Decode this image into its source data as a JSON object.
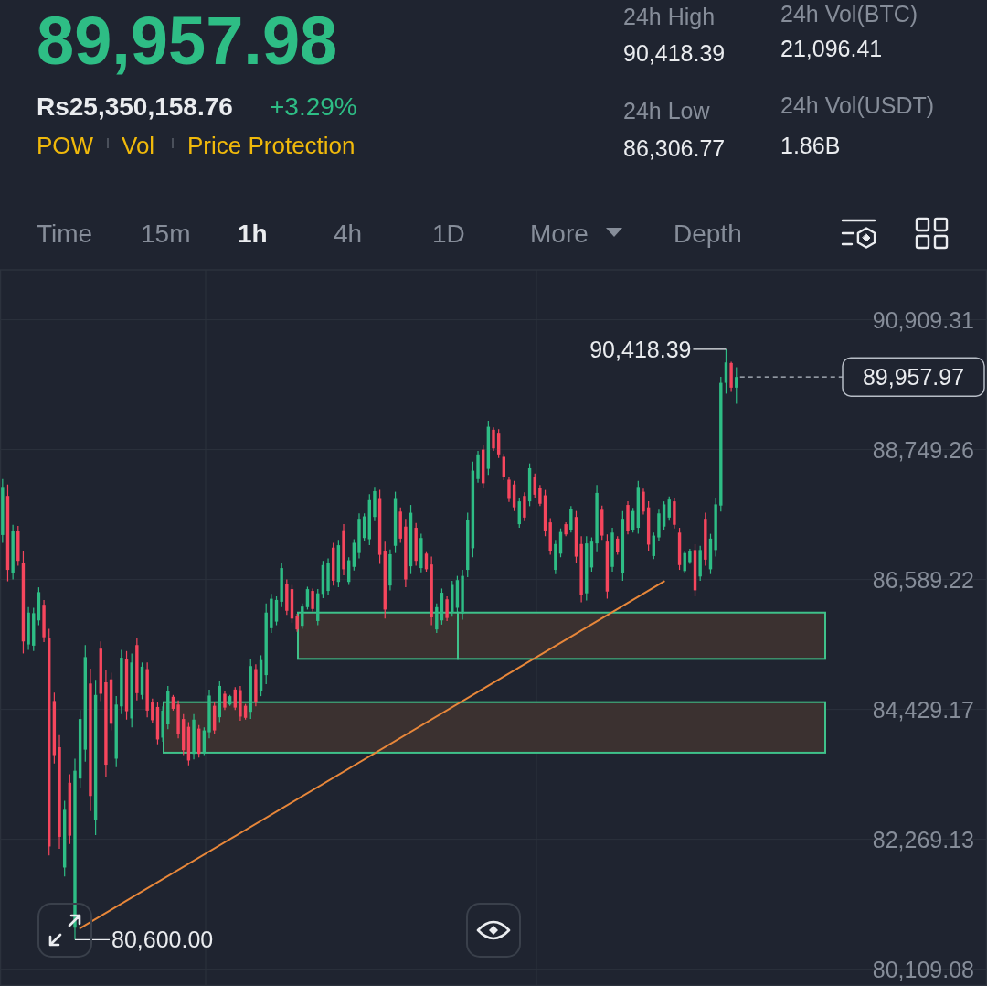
{
  "chart_data": {
    "type": "candlestick",
    "title": "89,957.98",
    "annotations": [
      "Rs25,350,158.76",
      "+3.29%",
      "POW",
      "Vol",
      "Price Protection",
      "24h High",
      "90,418.39",
      "24h Low",
      "86,306.77",
      "24h Vol(BTC)",
      "21,096.41",
      "24h Vol(USDT)",
      "1.86B",
      "Time",
      "15m",
      "1h",
      "4h",
      "1D",
      "More",
      "Depth",
      "90,418.39",
      "80,600.00"
    ],
    "categories": [
      null,
      null,
      null,
      null,
      null,
      null,
      null,
      null,
      null,
      null,
      null,
      null,
      null,
      null,
      null,
      null,
      null,
      null,
      null,
      null,
      null,
      null,
      null,
      null,
      null,
      null,
      null,
      null,
      null,
      null,
      null,
      null,
      null,
      null,
      null,
      null,
      null,
      null,
      null,
      null,
      null,
      null,
      null,
      null,
      null,
      null,
      null,
      null,
      null,
      null,
      null,
      null,
      null,
      null,
      null,
      null,
      null,
      null,
      null,
      null,
      null,
      null,
      null,
      null,
      null,
      null,
      null,
      null,
      null,
      null,
      null,
      null,
      null,
      null,
      null,
      null,
      null,
      null,
      null,
      null,
      null,
      null,
      null,
      null,
      null,
      null,
      null,
      null,
      null,
      null,
      null,
      null,
      null,
      null,
      null,
      null,
      null,
      null,
      null,
      null,
      null,
      null,
      null,
      null,
      null,
      null,
      null,
      null,
      null,
      null,
      null,
      null,
      null,
      null,
      null,
      null,
      null,
      null,
      null,
      null,
      null,
      null,
      null,
      null,
      null,
      null,
      null,
      null,
      null,
      null,
      null,
      null,
      null,
      null,
      null,
      null,
      null,
      null,
      null,
      null,
      null,
      null,
      null,
      null,
      null,
      null,
      null,
      null,
      null,
      null,
      null,
      null,
      null,
      null,
      null,
      null,
      null,
      null,
      null,
      null,
      null,
      null,
      null,
      null,
      null,
      null,
      null,
      null,
      null,
      null,
      null,
      null,
      null,
      null,
      null,
      null,
      null,
      null,
      null,
      null,
      null,
      null,
      null,
      null,
      null,
      null,
      null,
      null,
      null,
      null,
      null
    ],
    "ohlc": [
      [
        87330,
        88260,
        87200,
        88130
      ],
      [
        87980,
        88170,
        86560,
        86750
      ],
      [
        86700,
        87500,
        86590,
        87390
      ],
      [
        87400,
        87480,
        86820,
        86900
      ],
      [
        86870,
        87070,
        85360,
        85560
      ],
      [
        85510,
        86130,
        85420,
        86040
      ],
      [
        85490,
        86120,
        85400,
        86030
      ],
      [
        85910,
        86460,
        85830,
        86380
      ],
      [
        86170,
        86250,
        85550,
        85630
      ],
      [
        85620,
        85770,
        82000,
        82150
      ],
      [
        84570,
        84710,
        83530,
        83670
      ],
      [
        83800,
        84000,
        82110,
        82310
      ],
      [
        81800,
        82910,
        81650,
        82760
      ],
      [
        83210,
        83350,
        82190,
        82330
      ],
      [
        80800,
        83610,
        80600,
        83410
      ],
      [
        83280,
        84420,
        83130,
        84270
      ],
      [
        83760,
        85500,
        83560,
        85300
      ],
      [
        84860,
        85110,
        82740,
        82990
      ],
      [
        82590,
        84920,
        82340,
        84670
      ],
      [
        85440,
        85560,
        84570,
        84690
      ],
      [
        84880,
        85080,
        83310,
        83510
      ],
      [
        84930,
        85040,
        84080,
        84190
      ],
      [
        83610,
        84650,
        83470,
        84510
      ],
      [
        84480,
        85420,
        84350,
        85290
      ],
      [
        85260,
        85400,
        84260,
        84400
      ],
      [
        84280,
        85360,
        84130,
        85210
      ],
      [
        85500,
        85620,
        84580,
        84700
      ],
      [
        84670,
        85210,
        84600,
        85140
      ],
      [
        85100,
        85210,
        84300,
        84410
      ],
      [
        84560,
        84610,
        84200,
        84250
      ],
      [
        84470,
        84550,
        83850,
        83930
      ],
      [
        83960,
        84480,
        83890,
        84410
      ],
      [
        84180,
        84820,
        84100,
        84740
      ],
      [
        84640,
        84670,
        84410,
        84440
      ],
      [
        84510,
        84580,
        83950,
        84020
      ],
      [
        84270,
        84350,
        83670,
        83750
      ],
      [
        84140,
        84220,
        83500,
        83580
      ],
      [
        83690,
        84350,
        83600,
        84260
      ],
      [
        84110,
        84170,
        83630,
        83690
      ],
      [
        83720,
        84130,
        83670,
        84080
      ],
      [
        84050,
        84760,
        83950,
        84660
      ],
      [
        84490,
        84550,
        84020,
        84080
      ],
      [
        84300,
        84900,
        84220,
        84820
      ],
      [
        84690,
        84730,
        84420,
        84460
      ],
      [
        84510,
        84670,
        84490,
        84650
      ],
      [
        84760,
        84800,
        84420,
        84460
      ],
      [
        84750,
        84820,
        84240,
        84310
      ],
      [
        84490,
        84520,
        84260,
        84290
      ],
      [
        84390,
        85270,
        84270,
        85150
      ],
      [
        85100,
        85180,
        84480,
        84560
      ],
      [
        84730,
        85330,
        84650,
        85250
      ],
      [
        85000,
        86190,
        84850,
        86040
      ],
      [
        85780,
        86350,
        85700,
        86270
      ],
      [
        85890,
        86310,
        85830,
        86250
      ],
      [
        86220,
        86870,
        86130,
        86780
      ],
      [
        86520,
        86590,
        86000,
        86070
      ],
      [
        86430,
        86500,
        85870,
        85940
      ],
      [
        85980,
        86020,
        85720,
        85760
      ],
      [
        85820,
        86190,
        85770,
        86140
      ],
      [
        86130,
        86470,
        86090,
        86430
      ],
      [
        86400,
        86440,
        86060,
        86100
      ],
      [
        85900,
        86430,
        85830,
        86360
      ],
      [
        86350,
        86900,
        86280,
        86830
      ],
      [
        86400,
        86940,
        86330,
        86870
      ],
      [
        87120,
        87200,
        86490,
        86570
      ],
      [
        86550,
        87250,
        86460,
        87160
      ],
      [
        87410,
        87510,
        86660,
        86760
      ],
      [
        86550,
        86960,
        86500,
        86910
      ],
      [
        86800,
        87260,
        86740,
        87200
      ],
      [
        87030,
        87690,
        86940,
        87600
      ],
      [
        87280,
        87690,
        87230,
        87640
      ],
      [
        87260,
        88010,
        87160,
        87910
      ],
      [
        87630,
        88130,
        87560,
        88060
      ],
      [
        87930,
        88080,
        86850,
        87000
      ],
      [
        87070,
        87220,
        85940,
        86090
      ],
      [
        86490,
        87090,
        86410,
        87010
      ],
      [
        87150,
        88050,
        87030,
        87930
      ],
      [
        87720,
        87790,
        87200,
        87270
      ],
      [
        87470,
        87600,
        86460,
        86590
      ],
      [
        86810,
        87830,
        86680,
        87700
      ],
      [
        87450,
        87530,
        86820,
        86900
      ],
      [
        86780,
        87350,
        86710,
        87280
      ],
      [
        87020,
        87060,
        86720,
        86760
      ],
      [
        86840,
        86970,
        85830,
        85960
      ],
      [
        85760,
        86190,
        85700,
        86130
      ],
      [
        85910,
        86440,
        85840,
        86370
      ],
      [
        86260,
        86310,
        85900,
        85950
      ],
      [
        86040,
        86570,
        85970,
        86500
      ],
      [
        86120,
        86650,
        86050,
        86580
      ],
      [
        86020,
        86750,
        85920,
        86650
      ],
      [
        86750,
        87700,
        86630,
        87580
      ],
      [
        87110,
        88550,
        86960,
        88400
      ],
      [
        88260,
        88730,
        88200,
        88670
      ],
      [
        88750,
        88830,
        88110,
        88190
      ],
      [
        88430,
        89230,
        88330,
        89130
      ],
      [
        89080,
        89120,
        88730,
        88770
      ],
      [
        89030,
        89090,
        88610,
        88670
      ],
      [
        88630,
        88680,
        88240,
        88290
      ],
      [
        88250,
        88300,
        87880,
        87930
      ],
      [
        88170,
        88230,
        87730,
        87790
      ],
      [
        87510,
        87950,
        87450,
        87890
      ],
      [
        87980,
        88040,
        87560,
        87620
      ],
      [
        87890,
        88520,
        87810,
        88440
      ],
      [
        88300,
        88350,
        87950,
        88000
      ],
      [
        88120,
        88160,
        87810,
        87850
      ],
      [
        87990,
        88080,
        87310,
        87400
      ],
      [
        87540,
        87610,
        87000,
        87070
      ],
      [
        86750,
        87250,
        86680,
        87180
      ],
      [
        87020,
        87440,
        86960,
        87380
      ],
      [
        87510,
        87540,
        87310,
        87340
      ],
      [
        87420,
        87810,
        87370,
        87760
      ],
      [
        87630,
        87730,
        86870,
        86970
      ],
      [
        87180,
        87310,
        86210,
        86340
      ],
      [
        86360,
        87310,
        86240,
        87190
      ],
      [
        86790,
        87290,
        86720,
        87220
      ],
      [
        87190,
        88160,
        87060,
        88030
      ],
      [
        87750,
        87820,
        87250,
        87320
      ],
      [
        87220,
        87340,
        86270,
        86390
      ],
      [
        86800,
        87450,
        86720,
        87370
      ],
      [
        87270,
        87310,
        87000,
        87040
      ],
      [
        86700,
        87730,
        86570,
        87600
      ],
      [
        87830,
        87890,
        87340,
        87400
      ],
      [
        87420,
        87780,
        87370,
        87730
      ],
      [
        87450,
        88230,
        87350,
        88130
      ],
      [
        88050,
        88100,
        87670,
        87720
      ],
      [
        87790,
        87890,
        87070,
        87170
      ],
      [
        86980,
        87370,
        86930,
        87320
      ],
      [
        87290,
        87750,
        87230,
        87690
      ],
      [
        87470,
        87890,
        87420,
        87840
      ],
      [
        87620,
        87970,
        87570,
        87920
      ],
      [
        87890,
        87950,
        87440,
        87500
      ],
      [
        87370,
        87450,
        86750,
        86830
      ],
      [
        86730,
        87070,
        86690,
        87030
      ],
      [
        86880,
        87100,
        86850,
        87070
      ],
      [
        87080,
        87180,
        86310,
        86410
      ],
      [
        86640,
        87150,
        86570,
        87080
      ],
      [
        87600,
        87700,
        86820,
        86920
      ],
      [
        86760,
        87350,
        86680,
        87270
      ],
      [
        87080,
        87950,
        86970,
        87840
      ],
      [
        87820,
        89960,
        87720,
        89860
      ],
      [
        89860,
        90418.39,
        89680,
        90200
      ],
      [
        90190,
        90210,
        89710,
        89780
      ],
      [
        89780,
        90120,
        89510,
        89957.97
      ],
      null,
      null,
      null,
      null,
      null,
      null,
      null,
      null,
      null,
      null,
      null,
      null,
      null,
      null,
      null,
      null,
      null,
      null,
      null,
      null,
      null,
      null,
      null,
      null,
      null,
      null,
      null,
      null,
      null,
      null,
      null,
      null,
      null,
      null,
      null,
      null,
      null,
      null,
      null,
      null,
      null,
      null,
      null,
      null,
      null,
      null,
      null,
      null
    ],
    "colors": [
      "#2ebd85",
      "#f6465d",
      "#2ebd85",
      "#f6465d",
      "#f6465d",
      "#2ebd85",
      "#2ebd85",
      "#2ebd85",
      "#f6465d",
      "#f6465d",
      "#f6465d",
      "#f6465d",
      "#2ebd85",
      "#f6465d",
      "#2ebd85",
      "#2ebd85",
      "#2ebd85",
      "#f6465d",
      "#2ebd85",
      "#f6465d",
      "#f6465d",
      "#f6465d",
      "#2ebd85",
      "#2ebd85",
      "#f6465d",
      "#2ebd85",
      "#f6465d",
      "#2ebd85",
      "#f6465d",
      "#f6465d",
      "#f6465d",
      "#2ebd85",
      "#2ebd85",
      "#f6465d",
      "#f6465d",
      "#f6465d",
      "#f6465d",
      "#2ebd85",
      "#f6465d",
      "#2ebd85",
      "#2ebd85",
      "#f6465d",
      "#2ebd85",
      "#f6465d",
      "#2ebd85",
      "#f6465d",
      "#f6465d",
      "#f6465d",
      "#2ebd85",
      "#f6465d",
      "#2ebd85",
      "#2ebd85",
      "#2ebd85",
      "#2ebd85",
      "#2ebd85",
      "#f6465d",
      "#f6465d",
      "#f6465d",
      "#2ebd85",
      "#2ebd85",
      "#f6465d",
      "#2ebd85",
      "#2ebd85",
      "#2ebd85",
      "#f6465d",
      "#2ebd85",
      "#f6465d",
      "#2ebd85",
      "#2ebd85",
      "#2ebd85",
      "#2ebd85",
      "#2ebd85",
      "#2ebd85",
      "#f6465d",
      "#f6465d",
      "#2ebd85",
      "#2ebd85",
      "#f6465d",
      "#f6465d",
      "#2ebd85",
      "#f6465d",
      "#2ebd85",
      "#f6465d",
      "#f6465d",
      "#2ebd85",
      "#2ebd85",
      "#f6465d",
      "#2ebd85",
      "#2ebd85",
      "#2ebd85",
      "#2ebd85",
      "#2ebd85",
      "#2ebd85",
      "#f6465d",
      "#2ebd85",
      "#f6465d",
      "#f6465d",
      "#f6465d",
      "#f6465d",
      "#f6465d",
      "#2ebd85",
      "#f6465d",
      "#2ebd85",
      "#f6465d",
      "#f6465d",
      "#f6465d",
      "#f6465d",
      "#2ebd85",
      "#2ebd85",
      "#f6465d",
      "#2ebd85",
      "#f6465d",
      "#f6465d",
      "#2ebd85",
      "#2ebd85",
      "#2ebd85",
      "#f6465d",
      "#f6465d",
      "#2ebd85",
      "#f6465d",
      "#2ebd85",
      "#f6465d",
      "#2ebd85",
      "#2ebd85",
      "#f6465d",
      "#f6465d",
      "#2ebd85",
      "#2ebd85",
      "#2ebd85",
      "#2ebd85",
      "#f6465d",
      "#f6465d",
      "#2ebd85",
      "#2ebd85",
      "#f6465d",
      "#2ebd85",
      "#f6465d",
      "#2ebd85",
      "#2ebd85",
      "#2ebd85",
      "#2ebd85",
      "#f6465d",
      "#2ebd85",
      null,
      null,
      null,
      null,
      null,
      null,
      null,
      null,
      null,
      null,
      null,
      null,
      null,
      null,
      null,
      null,
      null,
      null,
      null,
      null,
      null,
      null,
      null,
      null,
      null,
      null,
      null,
      null,
      null,
      null,
      null,
      null,
      null,
      null,
      null,
      null,
      null,
      null,
      null,
      null,
      null,
      null,
      null,
      null,
      null,
      null,
      null,
      null
    ],
    "series": [
      {
        "type": "line",
        "color": "#e8873a",
        "values": [
          null,
          null,
          null,
          null,
          null,
          null,
          null,
          null,
          null,
          null,
          null,
          null,
          null,
          null,
          null,
          80790,
          null,
          null,
          null,
          null,
          null,
          null,
          null,
          null,
          null,
          null,
          null,
          null,
          null,
          null,
          null,
          null,
          null,
          null,
          null,
          null,
          null,
          null,
          null,
          null,
          null,
          null,
          null,
          null,
          null,
          null,
          null,
          null,
          null,
          null,
          null,
          null,
          null,
          null,
          null,
          null,
          null,
          null,
          null,
          null,
          null,
          null,
          null,
          null,
          null,
          null,
          null,
          null,
          null,
          null,
          null,
          null,
          null,
          null,
          null,
          null,
          null,
          null,
          null,
          null,
          null,
          null,
          null,
          null,
          null,
          null,
          null,
          null,
          null,
          null,
          null,
          null,
          null,
          null,
          null,
          null,
          null,
          null,
          null,
          null,
          null,
          null,
          null,
          null,
          null,
          null,
          null,
          null,
          null,
          null,
          null,
          null,
          null,
          null,
          null,
          null,
          null,
          null,
          null,
          null,
          null,
          null,
          null,
          null,
          null,
          null,
          null,
          null,
          86560,
          null,
          null,
          null,
          null,
          null,
          null,
          null,
          null,
          null,
          null,
          null,
          null,
          null,
          null,
          null,
          null,
          null,
          null,
          null,
          null,
          null,
          null,
          null,
          null,
          null,
          null,
          null,
          null,
          null,
          null,
          null,
          null,
          null,
          null,
          null,
          null,
          null,
          null,
          null,
          null,
          null,
          null,
          null,
          null,
          null,
          null,
          null,
          null,
          null,
          null,
          null,
          null,
          null,
          null,
          null,
          null,
          null,
          null,
          null,
          null,
          null,
          null
        ]
      }
    ],
    "ylim": [
      79830,
      91740
    ],
    "yticks": [
      {
        "value": 90909.31,
        "label": "90,909.31"
      },
      {
        "value": 88749.26,
        "label": "88,749.26"
      },
      {
        "value": 86589.22,
        "label": "86,589.22"
      },
      {
        "value": 84429.17,
        "label": "84,429.17"
      },
      {
        "value": 82269.13,
        "label": "82,269.13"
      },
      {
        "value": 80109.08,
        "label": "80,109.08"
      }
    ],
    "grid": true,
    "tick_labels": "y",
    "ref_lines": [
      {
        "axis": "y",
        "value": 89957.97,
        "label": "89,957.97",
        "color": "#b7bdc6",
        "line_style": "dashed"
      }
    ],
    "bands": [
      {
        "axis": "y",
        "from": 85270,
        "to": 86040,
        "color": "#3b3130"
      },
      {
        "axis": "y",
        "from": 85270,
        "to": 86040,
        "color": "#3b3130"
      },
      {
        "axis": "y",
        "from": 83710,
        "to": 84550,
        "color": "#3b3130"
      }
    ]
  }
}
